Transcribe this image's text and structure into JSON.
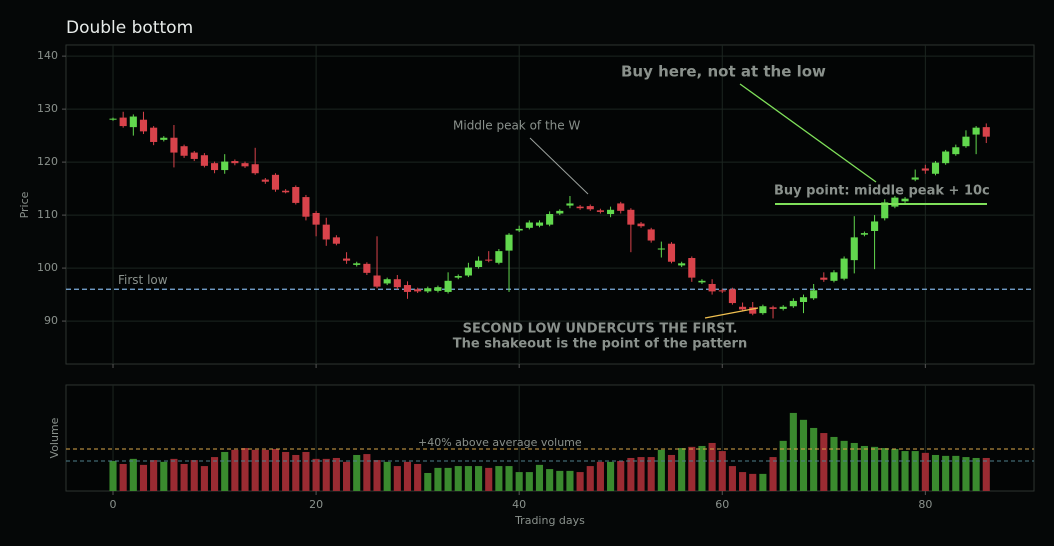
{
  "chart_data": [
    {
      "type": "candlestick",
      "title": "Double bottom",
      "ylabel": "Price",
      "x": [
        0,
        1,
        2,
        3,
        4,
        5,
        6,
        7,
        8,
        9,
        10,
        11,
        12,
        13,
        14,
        15,
        16,
        17,
        18,
        19,
        20,
        21,
        22,
        23,
        24,
        25,
        26,
        27,
        28,
        29,
        30,
        31,
        32,
        33,
        34,
        35,
        36,
        37,
        38,
        39,
        40,
        41,
        42,
        43,
        44,
        45,
        46,
        47,
        48,
        49,
        50,
        51,
        52,
        53,
        54,
        55,
        56,
        57,
        58,
        59,
        60,
        61,
        62,
        63,
        64,
        65,
        66,
        67,
        68,
        69,
        70,
        71,
        72,
        73,
        74,
        75,
        76,
        77,
        78,
        79,
        80,
        81,
        82,
        83,
        84,
        85,
        86
      ],
      "open": [
        128,
        128.4,
        126.6,
        128,
        126.5,
        124.2,
        124.6,
        123,
        121.8,
        121.3,
        119.8,
        118.5,
        120.2,
        119.8,
        119.6,
        116.7,
        117.6,
        114.6,
        115.3,
        113.4,
        110.4,
        108.2,
        105.8,
        101.8,
        100.6,
        100.8,
        98.6,
        97.1,
        97.9,
        96.8,
        96,
        95.6,
        95.7,
        95.5,
        98.2,
        98.6,
        100.2,
        101.6,
        101,
        103.3,
        107.1,
        107.6,
        108,
        108.2,
        110.3,
        111.8,
        111.6,
        111.7,
        110.9,
        110.2,
        112.2,
        111,
        108.4,
        107.3,
        103.5,
        104.6,
        100.5,
        101.9,
        97.3,
        97,
        95.8,
        96,
        92.7,
        92.6,
        91.5,
        92.6,
        92.3,
        92.8,
        93.6,
        94.3,
        98.2,
        97.6,
        98,
        101.5,
        106.3,
        107,
        109.4,
        111.6,
        112.6,
        116.7,
        118.8,
        117.8,
        119.8,
        121.5,
        123,
        125.2,
        126.6
      ],
      "close": [
        128.2,
        126.8,
        128.6,
        125.8,
        123.8,
        124.6,
        121.8,
        121.2,
        120.6,
        119.3,
        118.5,
        120.1,
        119.8,
        119.2,
        117.9,
        116.3,
        114.8,
        114.3,
        112.3,
        109.7,
        108.2,
        105.4,
        104.6,
        101.4,
        100.9,
        99.1,
        96.5,
        97.9,
        96.4,
        95.5,
        95.6,
        96.2,
        96.4,
        97.6,
        98.5,
        100.1,
        101.4,
        101.4,
        103.2,
        106.3,
        107.4,
        108.6,
        108.6,
        110.2,
        110.8,
        112.2,
        111.3,
        111.1,
        110.6,
        111,
        110.8,
        108.2,
        107.9,
        105.2,
        103.7,
        101.2,
        100.9,
        98.2,
        97.6,
        95.6,
        95.6,
        93.4,
        92.2,
        91.4,
        92.8,
        92.3,
        92.7,
        93.8,
        94.5,
        95.8,
        97.8,
        99.2,
        101.8,
        105.8,
        106.6,
        108.8,
        112.4,
        113.3,
        113.1,
        117.1,
        118.4,
        119.9,
        122,
        122.8,
        124.8,
        126.5,
        124.8
      ],
      "high": [
        128.4,
        129.5,
        129,
        129.5,
        126.8,
        124.9,
        127,
        123.3,
        122.1,
        121.7,
        120.1,
        121.5,
        120.5,
        120.1,
        122.7,
        117,
        117.9,
        114.9,
        115.6,
        113.8,
        110.8,
        109.5,
        106.2,
        103,
        101.2,
        101.1,
        106,
        98.2,
        98.7,
        97.5,
        96.3,
        96.5,
        96.7,
        99.2,
        98.8,
        101,
        102.2,
        103.2,
        103.6,
        106.6,
        108,
        109,
        109,
        110.7,
        111.1,
        113.6,
        111.9,
        112,
        111.2,
        111.6,
        112.5,
        111.3,
        108.7,
        107.6,
        105,
        104.9,
        101.2,
        102.2,
        97.9,
        97.9,
        96.1,
        96.3,
        93.5,
        93.6,
        93.1,
        92.9,
        93,
        94.3,
        95,
        97,
        99.2,
        99.6,
        102.2,
        109.8,
        106.9,
        110,
        113,
        113.6,
        113.4,
        118.6,
        119.5,
        120.2,
        122.3,
        123.3,
        126,
        126.8,
        127.3
      ],
      "low": [
        127.8,
        126.5,
        125,
        125.3,
        123.2,
        123.9,
        119,
        120.8,
        120.2,
        119,
        117.9,
        117.8,
        119.4,
        118.9,
        117.6,
        115.9,
        114.4,
        114.1,
        112,
        109,
        106,
        104.2,
        104.3,
        100.8,
        100.3,
        98.7,
        96.2,
        96.8,
        96,
        94.2,
        95.3,
        95.3,
        95.4,
        95.2,
        97.9,
        98.3,
        99.9,
        101.1,
        100.7,
        95.5,
        106.8,
        107.3,
        107.7,
        107.9,
        110,
        111.3,
        111,
        110.8,
        110.3,
        109.6,
        110.3,
        103,
        107.6,
        104.8,
        102,
        100.9,
        100.2,
        97.4,
        97,
        95,
        95.3,
        93.1,
        91.8,
        91.1,
        91.2,
        90.5,
        92,
        92.5,
        91.5,
        94,
        97.4,
        97.3,
        97.7,
        99,
        106,
        99.8,
        109,
        111.3,
        112.3,
        116.4,
        117.8,
        117.5,
        119.5,
        121.2,
        122.7,
        121.5,
        123.6
      ],
      "up_color": "#62d84e",
      "down_color": "#d9434b",
      "xlim": [
        -4.63,
        90.7
      ],
      "xticks": [
        0,
        20,
        40,
        60,
        80
      ],
      "ylim": [
        81.9,
        142.1
      ],
      "yticks": [
        90,
        100,
        110,
        120,
        130,
        140
      ],
      "first_low": {
        "value": 96,
        "label": "First low",
        "color": "#7fb0e0"
      },
      "buy_point": {
        "value": 112.1,
        "label": "Buy point: middle peak + 10c",
        "color": "#7fe05a"
      },
      "annotations": [
        "Middle peak of the W",
        "Buy here, not at the low",
        "SECOND LOW UNDERCUTS THE FIRST.",
        "The shakeout is the point of the pattern"
      ]
    },
    {
      "type": "bar",
      "ylabel": "Volume",
      "xlabel": "Trading days",
      "x": [
        0,
        1,
        2,
        3,
        4,
        5,
        6,
        7,
        8,
        9,
        10,
        11,
        12,
        13,
        14,
        15,
        16,
        17,
        18,
        19,
        20,
        21,
        22,
        23,
        24,
        25,
        26,
        27,
        28,
        29,
        30,
        31,
        32,
        33,
        34,
        35,
        36,
        37,
        38,
        39,
        40,
        41,
        42,
        43,
        44,
        45,
        46,
        47,
        48,
        49,
        50,
        51,
        52,
        53,
        54,
        55,
        56,
        57,
        58,
        59,
        60,
        61,
        62,
        63,
        64,
        65,
        66,
        67,
        68,
        69,
        70,
        71,
        72,
        73,
        74,
        75,
        76,
        77,
        78,
        79,
        80,
        81,
        82,
        83,
        84,
        85,
        86
      ],
      "values": [
        1.0,
        0.9,
        1.07,
        0.87,
        1.03,
        0.97,
        1.07,
        0.9,
        1.03,
        0.83,
        1.13,
        1.3,
        1.37,
        1.43,
        1.37,
        1.37,
        1.4,
        1.3,
        1.2,
        1.3,
        1.07,
        1.07,
        1.1,
        0.97,
        1.2,
        1.23,
        1.03,
        0.97,
        0.83,
        0.97,
        0.9,
        0.6,
        0.77,
        0.77,
        0.83,
        0.83,
        0.83,
        0.77,
        0.83,
        0.83,
        0.63,
        0.63,
        0.87,
        0.73,
        0.67,
        0.67,
        0.63,
        0.83,
        0.97,
        0.97,
        1.0,
        1.1,
        1.13,
        1.13,
        1.37,
        1.2,
        1.43,
        1.47,
        1.5,
        1.6,
        1.33,
        0.83,
        0.63,
        0.57,
        0.57,
        1.13,
        1.67,
        2.6,
        2.37,
        2.1,
        1.93,
        1.8,
        1.67,
        1.6,
        1.5,
        1.47,
        1.43,
        1.4,
        1.33,
        1.33,
        1.27,
        1.2,
        1.17,
        1.17,
        1.13,
        1.1,
        1.1
      ],
      "up_color": "#3a8a2e",
      "down_color": "#9a2b32",
      "xlim": [
        -4.63,
        90.7
      ],
      "xticks": [
        0,
        20,
        40,
        60,
        80
      ],
      "ylim": [
        0,
        3.53
      ],
      "average": {
        "value": 1.0,
        "color": "#4f7f8c"
      },
      "threshold": {
        "value": 1.4,
        "label": "+40% above average volume",
        "color": "#d9a64a"
      }
    }
  ]
}
